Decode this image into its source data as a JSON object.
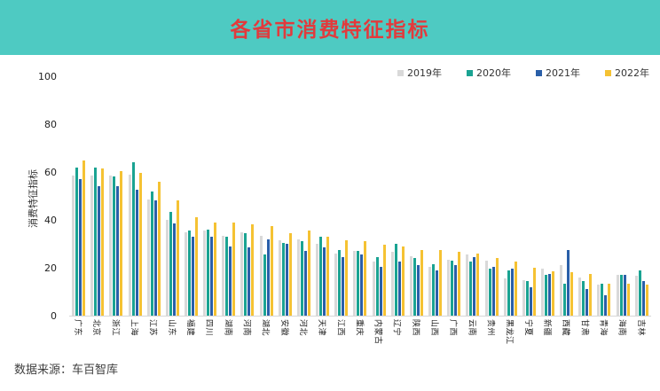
{
  "header": {
    "title": "各省市消费特征指标",
    "title_color": "#e23a3c",
    "banner_color": "#4ecac2"
  },
  "source_note": "数据来源：车百智库",
  "chart_data": {
    "type": "bar",
    "title": "各省市消费特征指标",
    "xlabel": "",
    "ylabel": "消费特征指标",
    "ylim": [
      0,
      100
    ],
    "yticks": [
      100,
      80,
      60,
      40,
      20,
      0
    ],
    "grid": false,
    "legend_position": "top-right",
    "categories": [
      "广东",
      "北京",
      "浙江",
      "上海",
      "江苏",
      "山东",
      "福建",
      "四川",
      "湖南",
      "河南",
      "湖北",
      "安徽",
      "河北",
      "天津",
      "江西",
      "重庆",
      "内蒙古",
      "辽宁",
      "陕西",
      "山西",
      "广西",
      "云南",
      "贵州",
      "黑龙江",
      "宁夏",
      "新疆",
      "西藏",
      "甘肃",
      "青海",
      "海南",
      "吉林"
    ],
    "series": [
      {
        "name": "2019年",
        "color": "#d9d9d9",
        "values": [
          58.5,
          58.5,
          58.5,
          59,
          48.5,
          40,
          35,
          35.5,
          33.5,
          35,
          33.5,
          31.5,
          32,
          30,
          26,
          27,
          22.5,
          26.5,
          25,
          20.5,
          23.5,
          25.5,
          23,
          15.5,
          15,
          19.5,
          21,
          16,
          13,
          17,
          16.5
        ]
      },
      {
        "name": "2020年",
        "color": "#1aa392",
        "values": [
          62,
          62,
          58,
          64,
          52,
          43.5,
          35.5,
          36,
          33,
          34.5,
          25.5,
          30.5,
          31,
          33,
          27.5,
          27,
          24.5,
          30,
          24,
          21.5,
          23,
          22.5,
          19.5,
          19,
          14.5,
          17,
          13.5,
          14.5,
          13.5,
          17,
          19
        ]
      },
      {
        "name": "2021年",
        "color": "#2a5fa8",
        "values": [
          57,
          54,
          54,
          52.5,
          48,
          38.5,
          33,
          33,
          29,
          28.5,
          32,
          30,
          27,
          28.5,
          24.5,
          25.5,
          20.5,
          22.5,
          21,
          19,
          21,
          24.5,
          20.5,
          19.5,
          12,
          17.5,
          27.5,
          11,
          8.5,
          17,
          14.5
        ]
      },
      {
        "name": "2022年",
        "color": "#f5c233",
        "values": [
          65,
          61.5,
          60.5,
          59.5,
          56,
          48,
          41,
          39,
          39,
          38,
          37.5,
          34.5,
          35.5,
          33,
          31.5,
          31,
          29.5,
          29,
          27.5,
          27.5,
          26.5,
          26,
          24,
          22.5,
          20,
          18.5,
          18,
          17.5,
          13.5,
          13.5,
          13
        ]
      }
    ]
  }
}
